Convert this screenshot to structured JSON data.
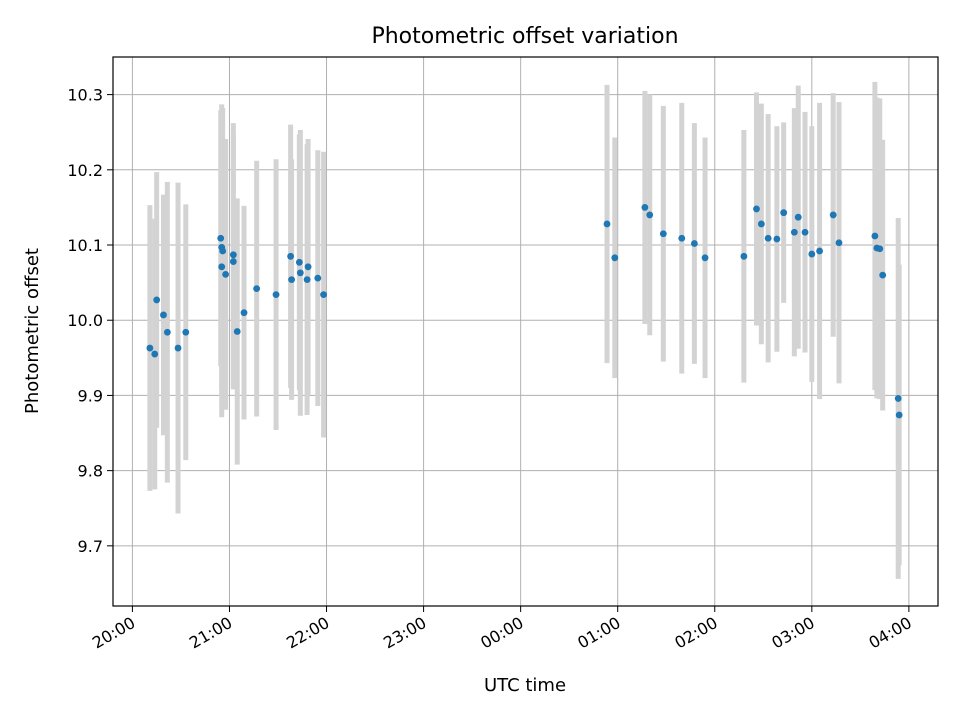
{
  "chart_data": {
    "type": "scatter",
    "title": "Photometric offset variation",
    "xlabel": "UTC time",
    "ylabel": "Photometric offset",
    "grid": true,
    "xlim_hours": [
      -4.2,
      4.3
    ],
    "ylim": [
      9.62,
      10.35
    ],
    "x_ticks": [
      {
        "h": -4,
        "label": "20:00"
      },
      {
        "h": -3,
        "label": "21:00"
      },
      {
        "h": -2,
        "label": "22:00"
      },
      {
        "h": -1,
        "label": "23:00"
      },
      {
        "h": 0,
        "label": "00:00"
      },
      {
        "h": 1,
        "label": "01:00"
      },
      {
        "h": 2,
        "label": "02:00"
      },
      {
        "h": 3,
        "label": "03:00"
      },
      {
        "h": 4,
        "label": "04:00"
      }
    ],
    "y_ticks": [
      {
        "v": 9.7,
        "label": "9.7"
      },
      {
        "v": 9.8,
        "label": "9.8"
      },
      {
        "v": 9.9,
        "label": "9.9"
      },
      {
        "v": 10.0,
        "label": "10.0"
      },
      {
        "v": 10.1,
        "label": "10.1"
      },
      {
        "v": 10.2,
        "label": "10.2"
      },
      {
        "v": 10.3,
        "label": "10.3"
      }
    ],
    "colors": {
      "point": "#1f77b4",
      "errorbar": "#d3d3d3"
    },
    "points": [
      {
        "h": -3.82,
        "y": 9.963,
        "err": 0.19
      },
      {
        "h": -3.77,
        "y": 9.955,
        "err": 0.18
      },
      {
        "h": -3.75,
        "y": 10.027,
        "err": 0.17
      },
      {
        "h": -3.68,
        "y": 10.007,
        "err": 0.16
      },
      {
        "h": -3.64,
        "y": 9.984,
        "err": 0.2
      },
      {
        "h": -3.53,
        "y": 9.963,
        "err": 0.22
      },
      {
        "h": -3.45,
        "y": 9.984,
        "err": 0.17
      },
      {
        "h": -3.09,
        "y": 10.109,
        "err": 0.17
      },
      {
        "h": -3.08,
        "y": 10.097,
        "err": 0.19
      },
      {
        "h": -3.08,
        "y": 10.071,
        "err": 0.2
      },
      {
        "h": -3.07,
        "y": 10.092,
        "err": 0.19
      },
      {
        "h": -3.04,
        "y": 10.061,
        "err": 0.18
      },
      {
        "h": -2.96,
        "y": 10.087,
        "err": 0.175
      },
      {
        "h": -2.96,
        "y": 10.078,
        "err": 0.17
      },
      {
        "h": -2.92,
        "y": 9.985,
        "err": 0.177
      },
      {
        "h": -2.85,
        "y": 10.01,
        "err": 0.142
      },
      {
        "h": -2.72,
        "y": 10.042,
        "err": 0.17
      },
      {
        "h": -2.52,
        "y": 10.034,
        "err": 0.18
      },
      {
        "h": -2.37,
        "y": 10.085,
        "err": 0.175
      },
      {
        "h": -2.36,
        "y": 10.054,
        "err": 0.16
      },
      {
        "h": -2.28,
        "y": 10.077,
        "err": 0.17
      },
      {
        "h": -2.27,
        "y": 10.063,
        "err": 0.19
      },
      {
        "h": -2.2,
        "y": 10.054,
        "err": 0.18
      },
      {
        "h": -2.19,
        "y": 10.071,
        "err": 0.17
      },
      {
        "h": -2.09,
        "y": 10.056,
        "err": 0.17
      },
      {
        "h": -2.03,
        "y": 10.034,
        "err": 0.19
      },
      {
        "h": 0.89,
        "y": 10.128,
        "err": 0.185
      },
      {
        "h": 0.97,
        "y": 10.083,
        "err": 0.16
      },
      {
        "h": 1.28,
        "y": 10.15,
        "err": 0.155
      },
      {
        "h": 1.33,
        "y": 10.14,
        "err": 0.16
      },
      {
        "h": 1.47,
        "y": 10.115,
        "err": 0.17
      },
      {
        "h": 1.66,
        "y": 10.109,
        "err": 0.18
      },
      {
        "h": 1.79,
        "y": 10.102,
        "err": 0.16
      },
      {
        "h": 1.9,
        "y": 10.083,
        "err": 0.16
      },
      {
        "h": 2.3,
        "y": 10.085,
        "err": 0.168
      },
      {
        "h": 2.43,
        "y": 10.148,
        "err": 0.155
      },
      {
        "h": 2.48,
        "y": 10.128,
        "err": 0.16
      },
      {
        "h": 2.55,
        "y": 10.109,
        "err": 0.165
      },
      {
        "h": 2.64,
        "y": 10.108,
        "err": 0.15
      },
      {
        "h": 2.71,
        "y": 10.143,
        "err": 0.12
      },
      {
        "h": 2.82,
        "y": 10.117,
        "err": 0.165
      },
      {
        "h": 2.86,
        "y": 10.137,
        "err": 0.175
      },
      {
        "h": 2.93,
        "y": 10.117,
        "err": 0.16
      },
      {
        "h": 3.0,
        "y": 10.088,
        "err": 0.17
      },
      {
        "h": 3.08,
        "y": 10.092,
        "err": 0.197
      },
      {
        "h": 3.22,
        "y": 10.14,
        "err": 0.162
      },
      {
        "h": 3.28,
        "y": 10.103,
        "err": 0.187
      },
      {
        "h": 3.65,
        "y": 10.112,
        "err": 0.205
      },
      {
        "h": 3.67,
        "y": 10.096,
        "err": 0.2
      },
      {
        "h": 3.7,
        "y": 10.095,
        "err": 0.2
      },
      {
        "h": 3.73,
        "y": 10.06,
        "err": 0.18
      },
      {
        "h": 3.89,
        "y": 9.896,
        "err": 0.24
      },
      {
        "h": 3.9,
        "y": 9.874,
        "err": 0.2
      }
    ]
  }
}
